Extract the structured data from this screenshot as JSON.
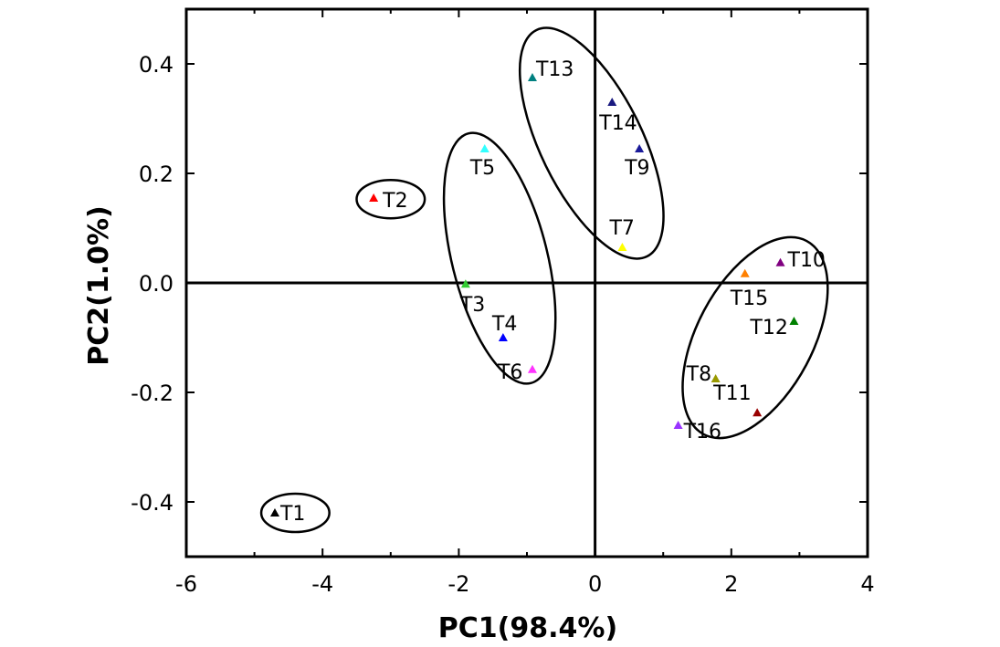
{
  "chart_data": {
    "type": "scatter",
    "title": "",
    "xlabel": "PC1(98.4%)",
    "ylabel": "PC2(1.0%)",
    "xlim": [
      -6,
      4
    ],
    "ylim": [
      -0.5,
      0.5
    ],
    "x_ticks": [
      -6,
      -4,
      -2,
      0,
      2,
      4
    ],
    "y_ticks": [
      -0.4,
      -0.2,
      0.0,
      0.2,
      0.4
    ],
    "x_tick_labels": [
      "-6",
      "-4",
      "-2",
      "0",
      "2",
      "4"
    ],
    "y_tick_labels": [
      "-0.4",
      "-0.2",
      "0.0",
      "0.2",
      "0.4"
    ],
    "grid": false,
    "reference_lines": {
      "x": 0,
      "y": 0
    },
    "points": [
      {
        "label": "T1",
        "x": -4.7,
        "y": -0.42,
        "color": "#000000"
      },
      {
        "label": "T2",
        "x": -3.25,
        "y": 0.155,
        "color": "#ff0000"
      },
      {
        "label": "T3",
        "x": -1.9,
        "y": -0.002,
        "color": "#33cc33"
      },
      {
        "label": "T4",
        "x": -1.35,
        "y": -0.1,
        "color": "#0000ff"
      },
      {
        "label": "T5",
        "x": -1.62,
        "y": 0.245,
        "color": "#33ffff"
      },
      {
        "label": "T6",
        "x": -0.92,
        "y": -0.158,
        "color": "#ff33ff"
      },
      {
        "label": "T7",
        "x": 0.4,
        "y": 0.065,
        "color": "#ffff00"
      },
      {
        "label": "T8",
        "x": 1.77,
        "y": -0.175,
        "color": "#999900"
      },
      {
        "label": "T9",
        "x": 0.65,
        "y": 0.245,
        "color": "#1a1a99"
      },
      {
        "label": "T10",
        "x": 2.72,
        "y": 0.037,
        "color": "#800080"
      },
      {
        "label": "T11",
        "x": 2.38,
        "y": -0.237,
        "color": "#990000"
      },
      {
        "label": "T12",
        "x": 2.92,
        "y": -0.07,
        "color": "#008000"
      },
      {
        "label": "T13",
        "x": -0.92,
        "y": 0.375,
        "color": "#008080"
      },
      {
        "label": "T14",
        "x": 0.25,
        "y": 0.33,
        "color": "#1a1a80"
      },
      {
        "label": "T15",
        "x": 2.2,
        "y": 0.017,
        "color": "#ff8000"
      },
      {
        "label": "T16",
        "x": 1.22,
        "y": -0.26,
        "color": "#9933ff"
      }
    ],
    "groups": [
      {
        "name": "",
        "cx": -4.4,
        "cy": -0.42,
        "rx": 0.5,
        "ry": 0.035,
        "angle_deg": 0,
        "members": [
          "T1"
        ]
      },
      {
        "name": "",
        "cx": -3.0,
        "cy": 0.153,
        "rx": 0.5,
        "ry": 0.035,
        "angle_deg": 0,
        "members": [
          "T2"
        ]
      },
      {
        "name": "",
        "cx": -1.4,
        "cy": 0.045,
        "rx": 0.7,
        "ry": 0.235,
        "angle_deg": -14,
        "members": [
          "T3",
          "T4",
          "T5",
          "T6"
        ]
      },
      {
        "name": "",
        "cx": -0.05,
        "cy": 0.255,
        "rx": 0.75,
        "ry": 0.23,
        "angle_deg": -26,
        "members": [
          "T7",
          "T9",
          "T13",
          "T14"
        ]
      },
      {
        "name": "",
        "cx": 2.35,
        "cy": -0.1,
        "rx": 0.85,
        "ry": 0.2,
        "angle_deg": 28,
        "members": [
          "T8",
          "T10",
          "T11",
          "T12",
          "T15",
          "T16"
        ]
      }
    ]
  }
}
